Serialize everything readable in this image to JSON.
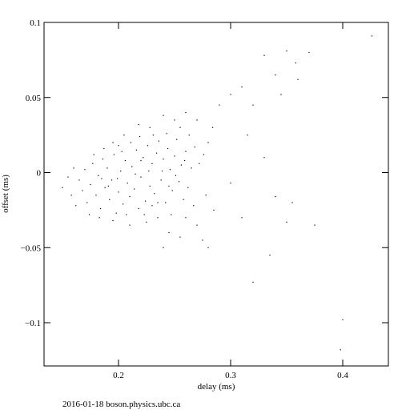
{
  "chart_data": {
    "type": "scatter",
    "x_label": "delay (ms)",
    "y_label": "offset (ms)",
    "footer": "2016-01-18 boson.physics.ubc.ca",
    "color": "#000000",
    "xlim": [
      0.1336,
      0.4407
    ],
    "ylim": [
      -0.1288,
      0.1
    ],
    "xticks": [
      0.2,
      0.3,
      0.4
    ],
    "yticks": [
      0.1,
      0.05,
      0,
      {
        "value": -0.05,
        "label": "−0.05"
      },
      {
        "value": -0.1,
        "label": "−0.1"
      }
    ],
    "x": [
      0.165,
      0.168,
      0.17,
      0.172,
      0.175,
      0.177,
      0.18,
      0.182,
      0.184,
      0.186,
      0.188,
      0.19,
      0.192,
      0.194,
      0.196,
      0.198,
      0.2,
      0.202,
      0.204,
      0.206,
      0.208,
      0.21,
      0.212,
      0.214,
      0.216,
      0.218,
      0.22,
      0.222,
      0.224,
      0.226,
      0.228,
      0.23,
      0.232,
      0.234,
      0.236,
      0.238,
      0.24,
      0.242,
      0.244,
      0.246,
      0.248,
      0.25,
      0.252,
      0.254,
      0.256,
      0.258,
      0.26,
      0.262,
      0.265,
      0.268,
      0.15,
      0.155,
      0.158,
      0.16,
      0.162,
      0.174,
      0.178,
      0.183,
      0.187,
      0.191,
      0.195,
      0.199,
      0.203,
      0.207,
      0.211,
      0.215,
      0.219,
      0.223,
      0.227,
      0.231,
      0.235,
      0.239,
      0.243,
      0.247,
      0.251,
      0.255,
      0.259,
      0.263,
      0.267,
      0.272,
      0.276,
      0.28,
      0.284,
      0.278,
      0.27,
      0.26,
      0.25,
      0.24,
      0.228,
      0.218,
      0.205,
      0.195,
      0.21,
      0.225,
      0.235,
      0.185,
      0.2,
      0.22,
      0.23,
      0.245,
      0.426,
      0.37,
      0.35,
      0.358,
      0.33,
      0.36,
      0.34,
      0.31,
      0.3,
      0.345,
      0.32,
      0.29,
      0.4,
      0.398,
      0.32,
      0.335,
      0.375,
      0.355,
      0.35,
      0.34,
      0.31,
      0.28,
      0.275,
      0.255,
      0.245,
      0.24,
      0.3,
      0.315,
      0.33,
      0.285,
      0.27,
      0.26
    ],
    "values": [
      -0.005,
      -0.012,
      0.002,
      -0.02,
      -0.008,
      0.006,
      -0.015,
      -0.002,
      -0.024,
      0.009,
      -0.01,
      0.003,
      -0.018,
      -0.005,
      0.012,
      -0.027,
      -0.013,
      0.001,
      -0.021,
      0.008,
      -0.007,
      -0.016,
      0.004,
      -0.011,
      0.015,
      -0.024,
      -0.003,
      0.01,
      -0.019,
      0.018,
      -0.009,
      0.006,
      -0.014,
      0.013,
      0.021,
      -0.005,
      0.009,
      -0.02,
      0.016,
      0.002,
      -0.012,
      0.011,
      0.022,
      -0.006,
      0.005,
      -0.018,
      0.014,
      -0.01,
      0.003,
      0.017,
      -0.01,
      -0.003,
      -0.015,
      0.003,
      -0.022,
      -0.028,
      0.012,
      -0.03,
      0.016,
      -0.009,
      0.02,
      -0.004,
      0.014,
      -0.028,
      0.02,
      -0.001,
      0.024,
      -0.028,
      0.001,
      0.025,
      -0.02,
      0.001,
      0.026,
      -0.028,
      -0.002,
      0.03,
      0.008,
      0.025,
      -0.022,
      0.006,
      0.012,
      0.02,
      0.03,
      -0.015,
      0.035,
      0.04,
      0.035,
      0.038,
      0.03,
      0.032,
      0.025,
      -0.032,
      -0.035,
      -0.033,
      -0.03,
      -0.004,
      0.018,
      0.008,
      -0.022,
      -0.009,
      0.091,
      0.08,
      0.081,
      0.073,
      0.078,
      0.062,
      0.065,
      0.057,
      0.052,
      0.052,
      0.045,
      0.045,
      -0.098,
      -0.118,
      -0.073,
      -0.055,
      -0.035,
      -0.02,
      -0.033,
      -0.016,
      -0.03,
      -0.05,
      -0.045,
      -0.043,
      -0.04,
      -0.05,
      -0.007,
      0.025,
      0.01,
      -0.025,
      -0.035,
      -0.03
    ]
  }
}
